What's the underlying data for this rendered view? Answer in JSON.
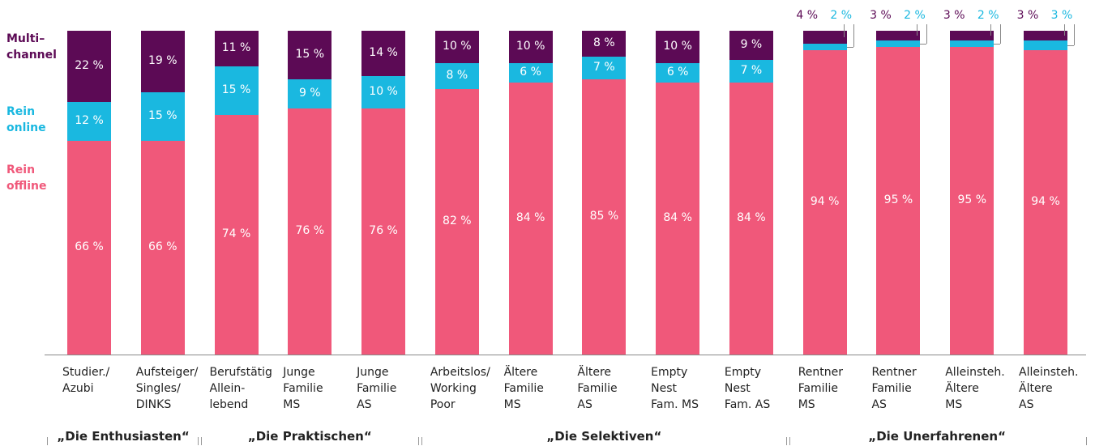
{
  "chart_data": {
    "type": "stacked_bar",
    "categories": [
      "Studier./\nAzubi",
      "Aufsteiger/\nSingles/\nDINKS",
      "Berufstätig\nAllein-\nlebend",
      "Junge\nFamilie\nMS",
      "Junge\nFamilie\nAS",
      "Arbeitslos/\nWorking\nPoor",
      "Ältere\nFamilie\nMS",
      "Ältere\nFamilie\nAS",
      "Empty\nNest\nFam. MS",
      "Empty\nNest\nFam. AS",
      "Rentner\nFamilie\nMS",
      "Rentner\nFamilie\nAS",
      "Alleinsteh.\nÄltere\nMS",
      "Alleinsteh.\nÄltere\nAS"
    ],
    "series": [
      {
        "name": "Rein\noffline",
        "color": "#f0587a",
        "values": [
          66,
          66,
          74,
          76,
          76,
          82,
          84,
          85,
          84,
          84,
          94,
          95,
          95,
          94
        ],
        "value_labels": [
          "66 %",
          "66 %",
          "74 %",
          "76 %",
          "76 %",
          "82 %",
          "84 %",
          "85 %",
          "84 %",
          "84 %",
          "94 %",
          "95 %",
          "95 %",
          "94 %"
        ]
      },
      {
        "name": "Rein\nonline",
        "color": "#1ab8e0",
        "values": [
          12,
          15,
          15,
          9,
          10,
          8,
          6,
          7,
          6,
          7,
          2,
          2,
          2,
          3
        ],
        "value_labels": [
          "12 %",
          "15 %",
          "15 %",
          "9 %",
          "10 %",
          "8 %",
          "6 %",
          "7 %",
          "6 %",
          "7 %",
          "2 %",
          "2 %",
          "2 %",
          "3 %"
        ]
      },
      {
        "name": "Multi–\nchannel",
        "color": "#5c0a55",
        "values": [
          22,
          19,
          11,
          15,
          14,
          10,
          10,
          8,
          10,
          9,
          4,
          3,
          3,
          3
        ],
        "value_labels": [
          "22 %",
          "19 %",
          "11 %",
          "15 %",
          "14 %",
          "10 %",
          "10 %",
          "8 %",
          "10 %",
          "9 %",
          "4 %",
          "3 %",
          "3 %",
          "3 %"
        ]
      }
    ],
    "groups": [
      "„Die Enthusiasten“",
      "„Die Praktischen“",
      "„Die Selektiven“",
      "„Die Unerfahrenen“"
    ],
    "ylim": [
      0,
      100
    ]
  }
}
